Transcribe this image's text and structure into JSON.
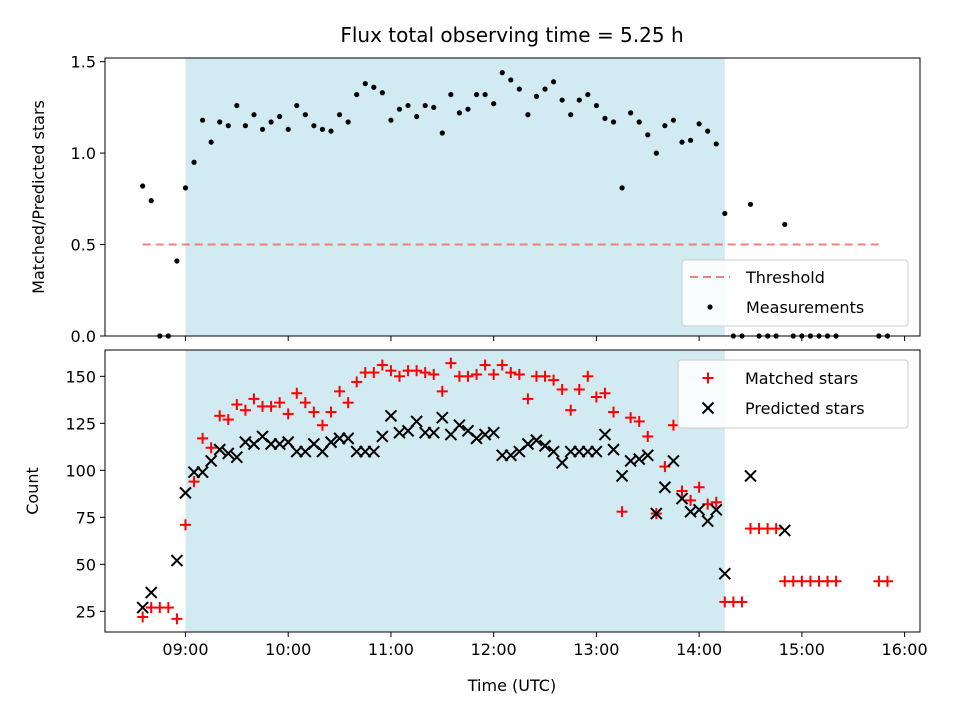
{
  "chart_data": [
    {
      "type": "scatter",
      "title": "Flux total observing time = 5.25 h",
      "xlabel": "",
      "ylabel": "Matched/Predicted stars",
      "xlim": [
        "08:13",
        "16:09"
      ],
      "ylim": [
        0,
        1.52
      ],
      "xticks": [
        "09:00",
        "10:00",
        "11:00",
        "12:00",
        "13:00",
        "14:00",
        "15:00",
        "16:00"
      ],
      "yticks": [
        "0.0",
        "0.5",
        "1.0",
        "1.5"
      ],
      "shaded_interval": [
        "09:00",
        "14:15"
      ],
      "threshold": {
        "name": "Threshold",
        "value": 0.5,
        "x_range": [
          "08:35",
          "15:45"
        ],
        "color": "#f08080"
      },
      "legend": {
        "position": "lower-right",
        "entries": [
          "Threshold",
          "Measurements"
        ]
      },
      "series": [
        {
          "name": "Measurements",
          "color": "#000000",
          "points": [
            [
              "08:35",
              0.82
            ],
            [
              "08:40",
              0.74
            ],
            [
              "08:45",
              0.0
            ],
            [
              "08:50",
              0.0
            ],
            [
              "08:55",
              0.41
            ],
            [
              "09:00",
              0.81
            ],
            [
              "09:05",
              0.95
            ],
            [
              "09:10",
              1.18
            ],
            [
              "09:15",
              1.06
            ],
            [
              "09:20",
              1.17
            ],
            [
              "09:25",
              1.15
            ],
            [
              "09:30",
              1.26
            ],
            [
              "09:35",
              1.15
            ],
            [
              "09:40",
              1.21
            ],
            [
              "09:45",
              1.13
            ],
            [
              "09:50",
              1.17
            ],
            [
              "09:55",
              1.2
            ],
            [
              "10:00",
              1.13
            ],
            [
              "10:05",
              1.26
            ],
            [
              "10:10",
              1.21
            ],
            [
              "10:15",
              1.15
            ],
            [
              "10:20",
              1.13
            ],
            [
              "10:25",
              1.12
            ],
            [
              "10:30",
              1.21
            ],
            [
              "10:35",
              1.17
            ],
            [
              "10:40",
              1.32
            ],
            [
              "10:45",
              1.38
            ],
            [
              "10:50",
              1.36
            ],
            [
              "10:55",
              1.33
            ],
            [
              "11:00",
              1.18
            ],
            [
              "11:05",
              1.24
            ],
            [
              "11:10",
              1.26
            ],
            [
              "11:15",
              1.2
            ],
            [
              "11:20",
              1.26
            ],
            [
              "11:25",
              1.25
            ],
            [
              "11:30",
              1.11
            ],
            [
              "11:35",
              1.32
            ],
            [
              "11:40",
              1.22
            ],
            [
              "11:45",
              1.24
            ],
            [
              "11:50",
              1.32
            ],
            [
              "11:55",
              1.32
            ],
            [
              "12:00",
              1.27
            ],
            [
              "12:05",
              1.44
            ],
            [
              "12:10",
              1.4
            ],
            [
              "12:15",
              1.35
            ],
            [
              "12:20",
              1.21
            ],
            [
              "12:25",
              1.31
            ],
            [
              "12:30",
              1.35
            ],
            [
              "12:35",
              1.39
            ],
            [
              "12:40",
              1.29
            ],
            [
              "12:45",
              1.21
            ],
            [
              "12:50",
              1.29
            ],
            [
              "12:55",
              1.32
            ],
            [
              "13:00",
              1.26
            ],
            [
              "13:05",
              1.19
            ],
            [
              "13:10",
              1.17
            ],
            [
              "13:15",
              0.81
            ],
            [
              "13:20",
              1.22
            ],
            [
              "13:25",
              1.17
            ],
            [
              "13:30",
              1.1
            ],
            [
              "13:35",
              1.0
            ],
            [
              "13:40",
              1.15
            ],
            [
              "13:45",
              1.18
            ],
            [
              "13:50",
              1.06
            ],
            [
              "13:55",
              1.07
            ],
            [
              "14:00",
              1.16
            ],
            [
              "14:05",
              1.12
            ],
            [
              "14:10",
              1.05
            ],
            [
              "14:15",
              0.67
            ],
            [
              "14:20",
              0.0
            ],
            [
              "14:25",
              0.0
            ],
            [
              "14:30",
              0.72
            ],
            [
              "14:35",
              0.0
            ],
            [
              "14:40",
              0.0
            ],
            [
              "14:45",
              0.0
            ],
            [
              "14:50",
              0.61
            ],
            [
              "14:55",
              0.0
            ],
            [
              "15:00",
              0.0
            ],
            [
              "15:05",
              0.0
            ],
            [
              "15:10",
              0.0
            ],
            [
              "15:15",
              0.0
            ],
            [
              "15:20",
              0.0
            ],
            [
              "15:45",
              0.0
            ],
            [
              "15:50",
              0.0
            ]
          ]
        }
      ]
    },
    {
      "type": "scatter",
      "title": "",
      "xlabel": "Time (UTC)",
      "ylabel": "Count",
      "xlim": [
        "08:13",
        "16:09"
      ],
      "ylim": [
        14,
        164
      ],
      "xticks": [
        "09:00",
        "10:00",
        "11:00",
        "12:00",
        "13:00",
        "14:00",
        "15:00",
        "16:00"
      ],
      "yticks": [
        "25",
        "50",
        "75",
        "100",
        "125",
        "150"
      ],
      "shaded_interval": [
        "09:00",
        "14:15"
      ],
      "legend": {
        "position": "upper-right",
        "entries": [
          "Matched stars",
          "Predicted stars"
        ]
      },
      "series": [
        {
          "name": "Matched stars",
          "marker": "plus",
          "color": "#ff0000",
          "points": [
            [
              "08:35",
              22
            ],
            [
              "08:40",
              27
            ],
            [
              "08:45",
              27
            ],
            [
              "08:50",
              27
            ],
            [
              "08:55",
              21
            ],
            [
              "09:00",
              71
            ],
            [
              "09:05",
              94
            ],
            [
              "09:10",
              117
            ],
            [
              "09:15",
              112
            ],
            [
              "09:20",
              129
            ],
            [
              "09:25",
              127
            ],
            [
              "09:30",
              135
            ],
            [
              "09:35",
              132
            ],
            [
              "09:40",
              138
            ],
            [
              "09:45",
              134
            ],
            [
              "09:50",
              134
            ],
            [
              "09:55",
              136
            ],
            [
              "10:00",
              130
            ],
            [
              "10:05",
              141
            ],
            [
              "10:10",
              136
            ],
            [
              "10:15",
              131
            ],
            [
              "10:20",
              124
            ],
            [
              "10:25",
              131
            ],
            [
              "10:30",
              142
            ],
            [
              "10:35",
              136
            ],
            [
              "10:40",
              147
            ],
            [
              "10:45",
              152
            ],
            [
              "10:50",
              152
            ],
            [
              "10:55",
              156
            ],
            [
              "11:00",
              153
            ],
            [
              "11:05",
              150
            ],
            [
              "11:10",
              153
            ],
            [
              "11:15",
              153
            ],
            [
              "11:20",
              152
            ],
            [
              "11:25",
              151
            ],
            [
              "11:30",
              142
            ],
            [
              "11:35",
              157
            ],
            [
              "11:40",
              150
            ],
            [
              "11:45",
              150
            ],
            [
              "11:50",
              151
            ],
            [
              "11:55",
              156
            ],
            [
              "12:00",
              151
            ],
            [
              "12:05",
              156
            ],
            [
              "12:10",
              152
            ],
            [
              "12:15",
              151
            ],
            [
              "12:20",
              138
            ],
            [
              "12:25",
              150
            ],
            [
              "12:30",
              150
            ],
            [
              "12:35",
              148
            ],
            [
              "12:40",
              143
            ],
            [
              "12:45",
              132
            ],
            [
              "12:50",
              143
            ],
            [
              "12:55",
              150
            ],
            [
              "13:00",
              139
            ],
            [
              "13:05",
              141
            ],
            [
              "13:10",
              131
            ],
            [
              "13:15",
              78
            ],
            [
              "13:20",
              128
            ],
            [
              "13:25",
              126
            ],
            [
              "13:30",
              118
            ],
            [
              "13:35",
              77
            ],
            [
              "13:40",
              102
            ],
            [
              "13:45",
              124
            ],
            [
              "13:50",
              89
            ],
            [
              "13:55",
              84
            ],
            [
              "14:00",
              91
            ],
            [
              "14:05",
              82
            ],
            [
              "14:10",
              83
            ],
            [
              "14:15",
              30
            ],
            [
              "14:20",
              30
            ],
            [
              "14:25",
              30
            ],
            [
              "14:30",
              69
            ],
            [
              "14:35",
              69
            ],
            [
              "14:40",
              69
            ],
            [
              "14:45",
              69
            ],
            [
              "14:50",
              41
            ],
            [
              "14:55",
              41
            ],
            [
              "15:00",
              41
            ],
            [
              "15:05",
              41
            ],
            [
              "15:10",
              41
            ],
            [
              "15:15",
              41
            ],
            [
              "15:20",
              41
            ],
            [
              "15:45",
              41
            ],
            [
              "15:50",
              41
            ]
          ]
        },
        {
          "name": "Predicted stars",
          "marker": "x",
          "color": "#000000",
          "points": [
            [
              "08:35",
              27
            ],
            [
              "08:40",
              35
            ],
            [
              "08:55",
              52
            ],
            [
              "09:00",
              88
            ],
            [
              "09:05",
              99
            ],
            [
              "09:10",
              99
            ],
            [
              "09:15",
              105
            ],
            [
              "09:20",
              111
            ],
            [
              "09:25",
              109
            ],
            [
              "09:30",
              107
            ],
            [
              "09:35",
              115
            ],
            [
              "09:40",
              114
            ],
            [
              "09:45",
              118
            ],
            [
              "09:50",
              114
            ],
            [
              "09:55",
              114
            ],
            [
              "10:00",
              115
            ],
            [
              "10:05",
              110
            ],
            [
              "10:10",
              110
            ],
            [
              "10:15",
              114
            ],
            [
              "10:20",
              110
            ],
            [
              "10:25",
              115
            ],
            [
              "10:30",
              117
            ],
            [
              "10:35",
              117
            ],
            [
              "10:40",
              110
            ],
            [
              "10:45",
              110
            ],
            [
              "10:50",
              110
            ],
            [
              "10:55",
              118
            ],
            [
              "11:00",
              129
            ],
            [
              "11:05",
              120
            ],
            [
              "11:10",
              121
            ],
            [
              "11:15",
              126
            ],
            [
              "11:20",
              120
            ],
            [
              "11:25",
              120
            ],
            [
              "11:30",
              128
            ],
            [
              "11:35",
              119
            ],
            [
              "11:40",
              124
            ],
            [
              "11:45",
              121
            ],
            [
              "11:50",
              117
            ],
            [
              "11:55",
              119
            ],
            [
              "12:00",
              120
            ],
            [
              "12:05",
              108
            ],
            [
              "12:10",
              108
            ],
            [
              "12:15",
              110
            ],
            [
              "12:20",
              114
            ],
            [
              "12:25",
              116
            ],
            [
              "12:30",
              113
            ],
            [
              "12:35",
              110
            ],
            [
              "12:40",
              104
            ],
            [
              "12:45",
              110
            ],
            [
              "12:50",
              110
            ],
            [
              "12:55",
              110
            ],
            [
              "13:00",
              110
            ],
            [
              "13:05",
              119
            ],
            [
              "13:10",
              111
            ],
            [
              "13:15",
              97
            ],
            [
              "13:20",
              105
            ],
            [
              "13:25",
              106
            ],
            [
              "13:30",
              108
            ],
            [
              "13:35",
              77
            ],
            [
              "13:40",
              91
            ],
            [
              "13:45",
              105
            ],
            [
              "13:50",
              85
            ],
            [
              "13:55",
              78
            ],
            [
              "14:00",
              79
            ],
            [
              "14:05",
              73
            ],
            [
              "14:10",
              79
            ],
            [
              "14:15",
              45
            ],
            [
              "14:30",
              97
            ],
            [
              "14:50",
              68
            ]
          ]
        }
      ]
    }
  ]
}
